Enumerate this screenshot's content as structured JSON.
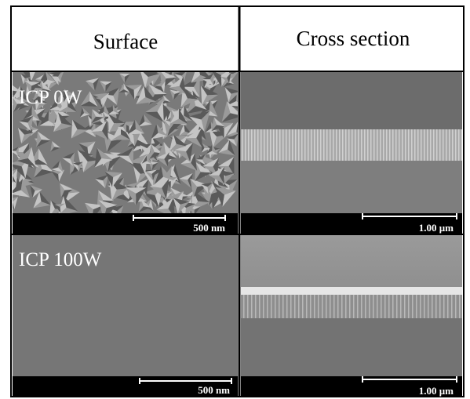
{
  "header": {
    "columns": [
      "Surface",
      "Cross section"
    ]
  },
  "rows": [
    {
      "label": "ICP 0W",
      "panels": [
        {
          "scale_bar": "500 nm"
        },
        {
          "scale_bar": "1.00 μm"
        }
      ]
    },
    {
      "label": "ICP 100W",
      "panels": [
        {
          "scale_bar": "500 nm"
        },
        {
          "scale_bar": "1.00 μm"
        }
      ]
    }
  ]
}
